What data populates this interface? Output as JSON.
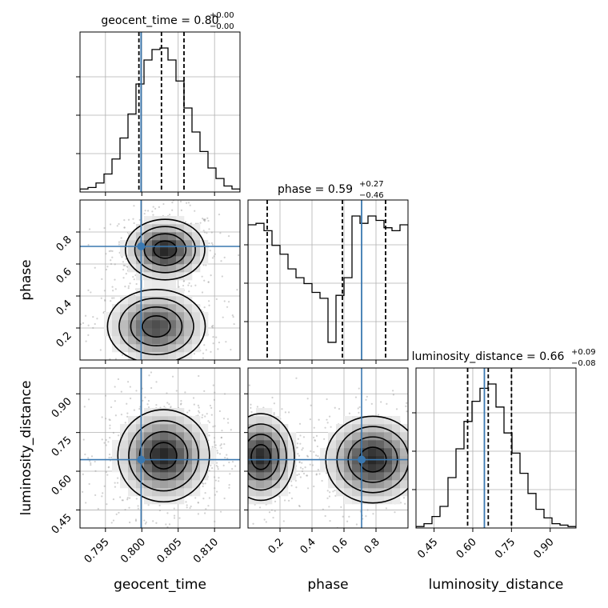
{
  "chart_data": {
    "type": "corner",
    "truth_color": "#3a78b0",
    "grid": true,
    "parameters": [
      {
        "name": "geocent_time",
        "axis_label": "geocent_time",
        "range": [
          0.7915,
          0.8135
        ],
        "ticks": [
          0.795,
          0.8,
          0.805,
          0.81
        ],
        "tick_labels": [
          "0.795",
          "0.800",
          "0.805",
          "0.810"
        ],
        "truth": 0.7999,
        "quantiles": [
          0.7996,
          0.8027,
          0.8058
        ],
        "title": {
          "main": "geocent_time = 0.80",
          "sup": "+0.00",
          "sub": "−0.00"
        },
        "hist": [
          0.02,
          0.03,
          0.06,
          0.12,
          0.22,
          0.36,
          0.52,
          0.72,
          0.88,
          0.95,
          0.96,
          0.88,
          0.74,
          0.56,
          0.4,
          0.27,
          0.16,
          0.09,
          0.04,
          0.02
        ]
      },
      {
        "name": "phase",
        "axis_label": "phase",
        "range": [
          0.0,
          1.0
        ],
        "ticks": [
          0.2,
          0.4,
          0.6,
          0.8
        ],
        "tick_labels": [
          "0.2",
          "0.4",
          "0.6",
          "0.8"
        ],
        "truth": 0.71,
        "quantiles": [
          0.12,
          0.59,
          0.86
        ],
        "title": {
          "main": "phase = 0.59",
          "sup": "+0.27",
          "sub": "−0.46"
        },
        "hist": [
          0.92,
          0.93,
          0.88,
          0.78,
          0.72,
          0.62,
          0.56,
          0.52,
          0.46,
          0.42,
          0.12,
          0.44,
          0.56,
          0.98,
          0.93,
          0.98,
          0.95,
          0.9,
          0.88,
          0.92
        ]
      },
      {
        "name": "luminosity_distance",
        "axis_label": "luminosity_distance",
        "range": [
          0.38,
          1.0
        ],
        "ticks": [
          0.45,
          0.6,
          0.75,
          0.9
        ],
        "tick_labels": [
          "0.45",
          "0.60",
          "0.75",
          "0.90"
        ],
        "truth": 0.645,
        "quantiles": [
          0.58,
          0.66,
          0.75
        ],
        "title": {
          "main": "luminosity_distance = 0.66",
          "sup": "+0.09",
          "sub": "−0.08"
        },
        "hist": [
          0.01,
          0.03,
          0.08,
          0.15,
          0.35,
          0.55,
          0.74,
          0.88,
          0.97,
          1.0,
          0.84,
          0.66,
          0.52,
          0.38,
          0.24,
          0.13,
          0.07,
          0.03,
          0.02,
          0.01
        ]
      }
    ],
    "pairs": [
      {
        "x": "geocent_time",
        "y": "phase",
        "truth_point": [
          0.7999,
          0.71
        ],
        "modes": [
          {
            "center": [
              0.8032,
              0.69
            ],
            "sigma": [
              0.0026,
              0.09
            ],
            "weight": 0.55
          },
          {
            "center": [
              0.802,
              0.21
            ],
            "sigma": [
              0.0032,
              0.11
            ],
            "weight": 0.45
          }
        ]
      },
      {
        "x": "geocent_time",
        "y": "luminosity_distance",
        "truth_point": [
          0.7999,
          0.645
        ],
        "modes": [
          {
            "center": [
              0.803,
              0.66
            ],
            "sigma": [
              0.003,
              0.085
            ],
            "weight": 1.0
          }
        ]
      },
      {
        "x": "phase",
        "y": "luminosity_distance",
        "truth_point": [
          0.71,
          0.645
        ],
        "modes": [
          {
            "center": [
              0.08,
              0.655
            ],
            "sigma": [
              0.1,
              0.08
            ],
            "weight": 0.5
          },
          {
            "center": [
              0.78,
              0.645
            ],
            "sigma": [
              0.14,
              0.08
            ],
            "weight": 0.5
          }
        ]
      }
    ]
  }
}
